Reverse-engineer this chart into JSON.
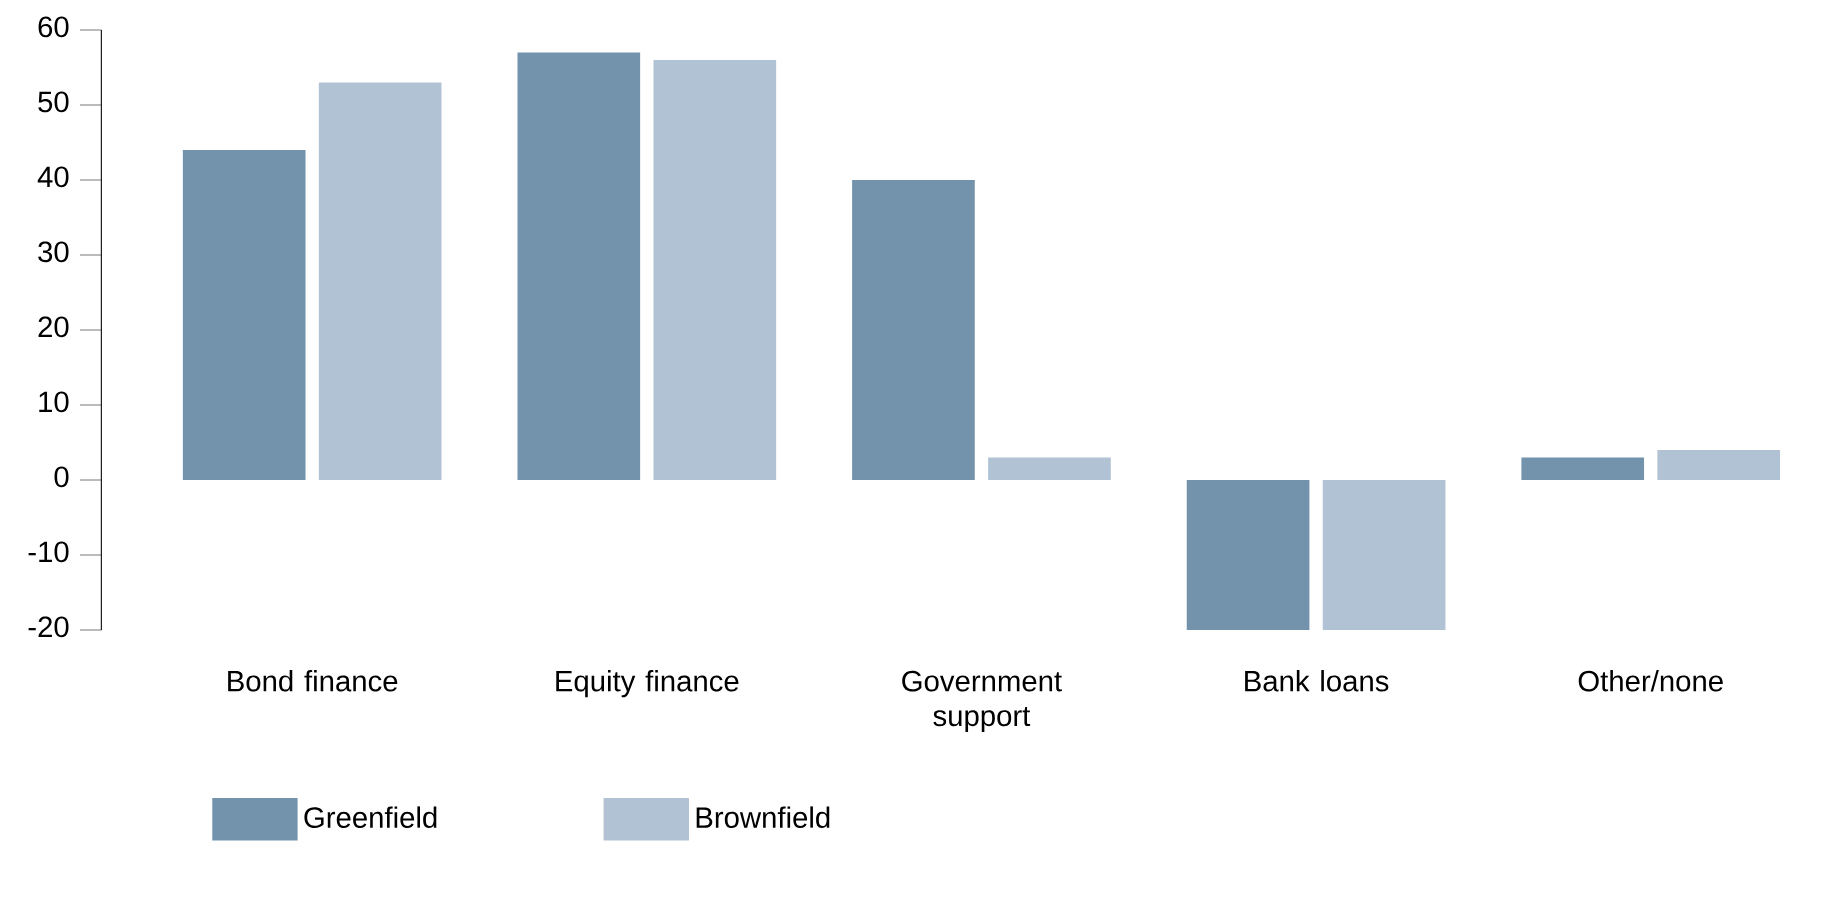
{
  "chart_data": {
    "type": "bar",
    "categories": [
      "Bond finance",
      "Equity finance",
      "Government support",
      "Bank loans",
      "Other/none"
    ],
    "series": [
      {
        "name": "Greenfield",
        "color": "#7393ad",
        "values": [
          44,
          57,
          40,
          -20,
          3
        ]
      },
      {
        "name": "Brownfield",
        "color": "#b0c2d3",
        "values": [
          53,
          56,
          3,
          -20,
          4
        ]
      }
    ],
    "ylim": [
      -20,
      60
    ],
    "yticks": [
      -20,
      -10,
      0,
      10,
      20,
      30,
      40,
      50,
      60
    ],
    "legend": "bottom",
    "grid": false
  }
}
